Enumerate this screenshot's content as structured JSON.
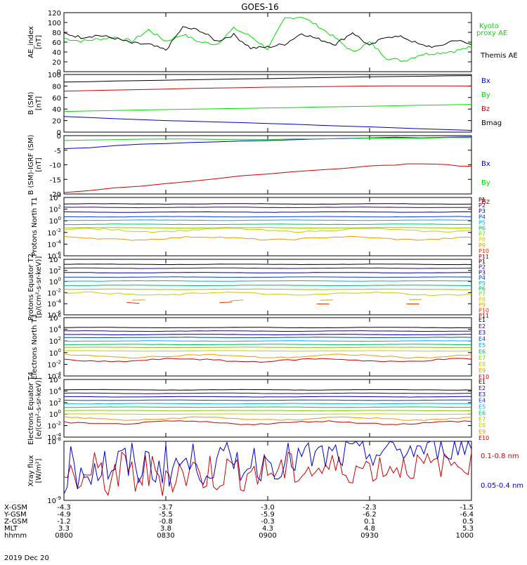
{
  "title": "GOES-16",
  "date": "2019 Dec 20",
  "colors": {
    "axis": "#000000",
    "black": "#000000",
    "green": "#00dd00",
    "red": "#cc0000",
    "blue": "#0000cc"
  },
  "xaxis": {
    "row_labels": [
      "X-GSM",
      "Y-GSM",
      "Z-GSM",
      "MLT",
      "hhmm"
    ],
    "ticks": [
      {
        "time": "0800",
        "values": [
          "-4.3",
          "-4.9",
          "-1.2",
          "3.3",
          "0800"
        ]
      },
      {
        "time": "0830",
        "values": [
          "-3.7",
          "-5.5",
          "-0.8",
          "3.8",
          "0830"
        ]
      },
      {
        "time": "0900",
        "values": [
          "-3.0",
          "-5.9",
          "-0.3",
          "4.3",
          "0900"
        ]
      },
      {
        "time": "0930",
        "values": [
          "-2.3",
          "-6.2",
          "0.1",
          "4.8",
          "0930"
        ]
      },
      {
        "time": "1000",
        "values": [
          "-1.5",
          "-6.4",
          "0.5",
          "5.3",
          "1000"
        ]
      }
    ]
  },
  "chart_data": [
    {
      "type": "line",
      "ylabel": "AE_index [nT]",
      "ylim": [
        0,
        120
      ],
      "yticks": [
        "0",
        "20",
        "40",
        "60",
        "80",
        "100",
        "120"
      ],
      "series": [
        {
          "name": "Kyoto proxy AE",
          "color": "green",
          "x": [
            "0800",
            "0805",
            "0810",
            "0815",
            "0820",
            "0825",
            "0830",
            "0835",
            "0840",
            "0845",
            "0850",
            "0855",
            "0900",
            "0905",
            "0910",
            "0915",
            "0920",
            "0925",
            "0930",
            "0935",
            "0940",
            "0945",
            "0950",
            "0955",
            "1000"
          ],
          "values": [
            68,
            62,
            66,
            70,
            62,
            85,
            62,
            76,
            60,
            56,
            88,
            72,
            46,
            108,
            112,
            92,
            68,
            40,
            60,
            28,
            22,
            35,
            38,
            42,
            50
          ]
        },
        {
          "name": "Themis AE",
          "color": "black",
          "x": [
            "0800",
            "0805",
            "0810",
            "0815",
            "0820",
            "0825",
            "0830",
            "0835",
            "0840",
            "0845",
            "0850",
            "0855",
            "0900",
            "0905",
            "0910",
            "0915",
            "0920",
            "0925",
            "0930",
            "0935",
            "0940",
            "0945",
            "0950",
            "0955",
            "1000"
          ],
          "values": [
            78,
            70,
            74,
            68,
            58,
            55,
            44,
            90,
            84,
            62,
            75,
            48,
            50,
            56,
            78,
            66,
            56,
            80,
            52,
            72,
            70,
            54,
            50,
            65,
            55
          ]
        }
      ]
    },
    {
      "type": "line",
      "ylabel": "B (SM) [nT]",
      "ylim": [
        0,
        100
      ],
      "yticks": [
        "0",
        "20",
        "40",
        "60",
        "80",
        "100"
      ],
      "series": [
        {
          "name": "Bx",
          "color": "blue",
          "x": [
            "0800",
            "0830",
            "0900",
            "0930",
            "1000"
          ],
          "values": [
            27,
            20,
            15,
            9,
            3
          ]
        },
        {
          "name": "By",
          "color": "green",
          "x": [
            "0800",
            "0830",
            "0900",
            "0930",
            "1000"
          ],
          "values": [
            36,
            39,
            42,
            45,
            48
          ]
        },
        {
          "name": "Bz",
          "color": "red",
          "x": [
            "0800",
            "0830",
            "0900",
            "0930",
            "1000"
          ],
          "values": [
            71,
            75,
            78,
            80,
            80
          ]
        },
        {
          "name": "Bmag",
          "color": "black",
          "x": [
            "0800",
            "0830",
            "0900",
            "0930",
            "1000"
          ],
          "values": [
            87,
            90,
            93,
            96,
            98
          ]
        }
      ]
    },
    {
      "type": "line",
      "ylabel": "B (SM)-IGRF (SM) [nT]",
      "ylim": [
        -20,
        0
      ],
      "yticks": [
        "-20",
        "-15",
        "-10",
        "-5",
        "0"
      ],
      "series": [
        {
          "name": "Bx",
          "color": "blue",
          "x": [
            "0800",
            "0830",
            "0900",
            "0930",
            "1000"
          ],
          "values": [
            -4.5,
            -2.5,
            -1.5,
            -0.8,
            -0.4
          ]
        },
        {
          "name": "By",
          "color": "green",
          "x": [
            "0800",
            "0830",
            "0900",
            "0930",
            "1000"
          ],
          "values": [
            -1.5,
            -1.0,
            -1.3,
            -1.0,
            -0.7
          ]
        },
        {
          "name": "Bz",
          "color": "red",
          "x": [
            "0800",
            "0830",
            "0900",
            "0930",
            "0945",
            "1000"
          ],
          "values": [
            -19.5,
            -16.5,
            -13,
            -10.5,
            -9.5,
            -10.5
          ]
        }
      ]
    },
    {
      "type": "line",
      "ylabel": "Protons North T1",
      "yscale": "log",
      "ylim": [
        -6,
        4
      ],
      "yticks": [
        "10^-6",
        "10^-4",
        "10^-2",
        "10^0",
        "10^2",
        "10^4"
      ],
      "series_labels": [
        "P1",
        "P2",
        "P3",
        "P4",
        "P5",
        "P6",
        "P7",
        "P8",
        "P9",
        "P10",
        "P11"
      ],
      "series_colors": [
        "#000000",
        "#330066",
        "#000099",
        "#0044dd",
        "#00aaff",
        "#00bb66",
        "#88cc00",
        "#cccc00",
        "#ee9900",
        "#dd3300",
        "#aa0000"
      ],
      "log_levels": [
        2.9,
        2.3,
        1.5,
        0.7,
        0.1,
        -0.6,
        -1.2,
        -1.6,
        -3.0,
        null,
        null
      ]
    },
    {
      "type": "line",
      "ylabel": "Protons Equator T2 [p/(cm²-s-sr-keV)]",
      "yscale": "log",
      "ylim": [
        -6,
        4
      ],
      "yticks": [
        "10^-6",
        "10^-4",
        "10^-2",
        "10^0",
        "10^2",
        "10^4"
      ],
      "series_labels": [
        "P1",
        "P2",
        "P3",
        "P4",
        "P5",
        "P6",
        "P7",
        "P8",
        "P9",
        "P10",
        "P11"
      ],
      "series_colors": [
        "#000000",
        "#330066",
        "#000099",
        "#0044dd",
        "#00aaff",
        "#00bb66",
        "#88cc00",
        "#cccc00",
        "#ee9900",
        "#dd3300",
        "#aa0000"
      ],
      "log_levels": [
        3.1,
        2.4,
        1.6,
        0.8,
        0.1,
        -0.7,
        -1.4,
        -2.2,
        -3.4,
        -3.9,
        null
      ]
    },
    {
      "type": "line",
      "ylabel": "Electrons North T3",
      "yscale": "log",
      "ylim": [
        -4,
        6
      ],
      "yticks": [
        "10^-4",
        "10^-2",
        "10^0",
        "10^2",
        "10^4",
        "10^6"
      ],
      "series_labels": [
        "E1",
        "E2",
        "E3",
        "E4",
        "E5",
        "E6",
        "E7",
        "E8",
        "E9",
        "E10"
      ],
      "series_colors": [
        "#000000",
        "#330066",
        "#000099",
        "#0044dd",
        "#00aaff",
        "#00bb66",
        "#88cc00",
        "#cccc00",
        "#ee9900",
        "#cc0000"
      ],
      "log_levels": [
        4.3,
        3.7,
        3.1,
        2.6,
        2.0,
        1.4,
        0.9,
        0.3,
        -0.6,
        -1.3
      ]
    },
    {
      "type": "line",
      "ylabel": "Electrons Equator T4 [e/(cm²-s-sr-keV)]",
      "yscale": "log",
      "ylim": [
        -4,
        6
      ],
      "yticks": [
        "10^-4",
        "10^-2",
        "10^0",
        "10^2",
        "10^4",
        "10^6"
      ],
      "series_labels": [
        "E1",
        "E2",
        "E3",
        "E4",
        "E5",
        "E6",
        "E7",
        "E8",
        "E9",
        "E10"
      ],
      "series_colors": [
        "#000000",
        "#330066",
        "#000099",
        "#0044dd",
        "#00aaff",
        "#00bb66",
        "#88cc00",
        "#cccc00",
        "#ee9900",
        "#cc0000"
      ],
      "log_levels": [
        4.2,
        3.6,
        3.0,
        2.4,
        1.8,
        1.2,
        0.6,
        0.0,
        -0.8,
        -1.5
      ]
    },
    {
      "type": "line",
      "ylabel": "Xray flux [W/m²]",
      "yscale": "log",
      "ylim": [
        -9,
        -8
      ],
      "yticks": [
        "10^-9",
        "10^-8"
      ],
      "series": [
        {
          "name": "0.1-0.8 nm",
          "color": "red",
          "x": [
            "0800",
            "0830",
            "0900",
            "0930",
            "1000"
          ],
          "log_values": [
            -8.62,
            -8.55,
            -8.5,
            -8.45,
            -8.38
          ]
        },
        {
          "name": "0.05-0.4 nm",
          "color": "blue",
          "x": [
            "0800",
            "0830",
            "0900",
            "0930",
            "1000"
          ],
          "log_values": [
            -8.45,
            -8.4,
            -8.35,
            -8.2,
            -8.08
          ]
        }
      ]
    }
  ],
  "legends": {
    "ae": [
      "Kyoto",
      "proxy AE",
      "Themis AE"
    ],
    "b": [
      "Bx",
      "By",
      "Bz",
      "Bmag"
    ],
    "dB": [
      "Bx",
      "By",
      "Bz"
    ],
    "xray": [
      "0.1-0.8 nm",
      "0.05-0.4 nm"
    ]
  }
}
